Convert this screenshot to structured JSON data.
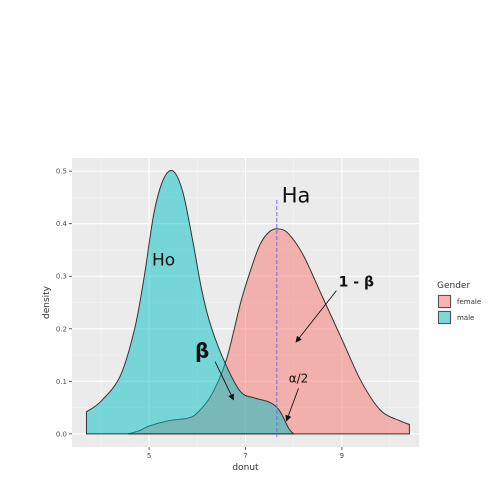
{
  "chart_data": {
    "type": "area",
    "title": "",
    "xlabel": "donut",
    "ylabel": "density",
    "xlim": [
      3.4,
      10.6
    ],
    "ylim": [
      -0.025,
      0.525
    ],
    "x_ticks": [
      5,
      7,
      9
    ],
    "x_minor_ticks": [
      4,
      6,
      8,
      10
    ],
    "y_ticks": [
      0.0,
      0.1,
      0.2,
      0.3,
      0.4,
      0.5
    ],
    "y_tick_labels": [
      "0.0",
      "0.1",
      "0.2",
      "0.3",
      "0.4",
      "0.5"
    ],
    "grid": true,
    "legend": {
      "title": "Gender",
      "position": "right"
    },
    "series": [
      {
        "name": "female",
        "color": "#F8766D",
        "x": [
          4.56,
          4.8,
          5.0,
          5.4,
          5.8,
          6.0,
          6.3,
          6.6,
          6.9,
          7.1,
          7.3,
          7.5,
          7.7,
          7.9,
          8.2,
          8.6,
          9.0,
          9.4,
          9.8,
          10.2,
          10.4
        ],
        "y": [
          0.0,
          0.006,
          0.015,
          0.025,
          0.03,
          0.04,
          0.075,
          0.14,
          0.25,
          0.31,
          0.36,
          0.385,
          0.39,
          0.38,
          0.34,
          0.26,
          0.18,
          0.1,
          0.045,
          0.025,
          0.018
        ]
      },
      {
        "name": "male",
        "color": "#00BFC4",
        "x": [
          3.7,
          4.0,
          4.4,
          4.7,
          4.9,
          5.1,
          5.3,
          5.5,
          5.7,
          5.9,
          6.1,
          6.3,
          6.6,
          6.9,
          7.2,
          7.5,
          7.7,
          7.9,
          8.0
        ],
        "y": [
          0.042,
          0.062,
          0.11,
          0.2,
          0.3,
          0.42,
          0.485,
          0.5,
          0.46,
          0.37,
          0.27,
          0.2,
          0.13,
          0.08,
          0.068,
          0.06,
          0.045,
          0.01,
          0.0
        ]
      }
    ],
    "reference_line": {
      "x": 7.65,
      "color": "#7B68EE",
      "style": "dashed"
    },
    "annotations": [
      {
        "text": "Ho",
        "x": 5.3,
        "y": 0.32
      },
      {
        "text": "Ha",
        "x": 8.05,
        "y": 0.44
      },
      {
        "text": "1 - β",
        "x": 9.3,
        "y": 0.28,
        "arrow_to": [
          8.05,
          0.175
        ]
      },
      {
        "text": "β",
        "x": 6.1,
        "y": 0.145,
        "arrow_to": [
          6.75,
          0.065
        ]
      },
      {
        "text": "α/2",
        "x": 8.1,
        "y": 0.098,
        "arrow_to": [
          7.85,
          0.025
        ]
      }
    ]
  }
}
